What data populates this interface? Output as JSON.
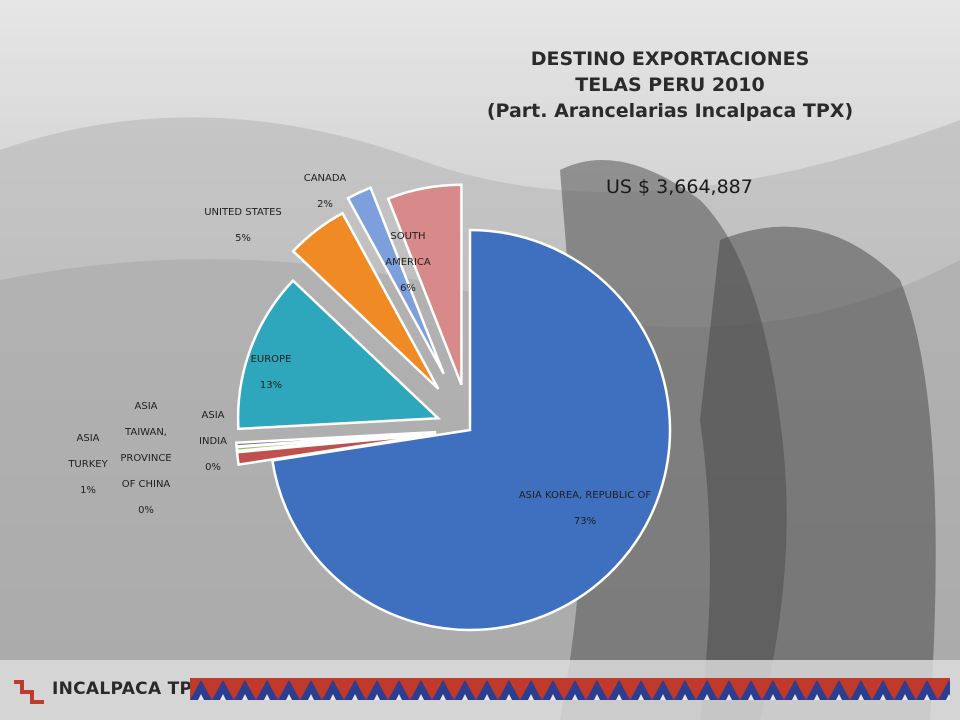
{
  "chart_data": {
    "type": "pie",
    "title": "DESTINO EXPORTACIONES",
    "subtitle": "TELAS PERU 2010",
    "subtitle2": "(Part. Arancelarias Incalpaca TPX)",
    "total_label": "US $ 3,664,887",
    "slices": [
      {
        "name": "ASIA KOREA, REPUBLIC OF",
        "value": 73,
        "label": "73%",
        "color": "#3f6fbf"
      },
      {
        "name": "ASIA TURKEY",
        "value": 1,
        "label": "1%",
        "color": "#c0504d"
      },
      {
        "name": "ASIA TAIWAN, PROVINCE OF CHINA",
        "value": 0.3,
        "label": "0%",
        "color": "#9bbb59"
      },
      {
        "name": "ASIA INDIA",
        "value": 0.3,
        "label": "0%",
        "color": "#8064a2"
      },
      {
        "name": "EUROPE",
        "value": 13,
        "label": "13%",
        "color": "#2ea6bb"
      },
      {
        "name": "UNITED STATES",
        "value": 5,
        "label": "5%",
        "color": "#f08a24"
      },
      {
        "name": "CANADA",
        "value": 2,
        "label": "2%",
        "color": "#7d9fdc"
      },
      {
        "name": "SOUTH AMERICA",
        "value": 6,
        "label": "6%",
        "color": "#d88a8a"
      }
    ]
  },
  "labels": {
    "korea": {
      "name": "ASIA KOREA, REPUBLIC OF",
      "pct": "73%"
    },
    "turkey": {
      "l1": "ASIA",
      "l2": "TURKEY",
      "pct": "1%"
    },
    "taiwan": {
      "l1": "ASIA",
      "l2": "TAIWAN,",
      "l3": "PROVINCE",
      "l4": "OF CHINA",
      "pct": "0%"
    },
    "india": {
      "l1": "ASIA",
      "l2": "INDIA",
      "pct": "0%"
    },
    "europe": {
      "name": "EUROPE",
      "pct": "13%"
    },
    "usa": {
      "name": "UNITED  STATES",
      "pct": "5%"
    },
    "canada": {
      "name": "CANADA",
      "pct": "2%"
    },
    "south_america": {
      "l1": "SOUTH",
      "l2": "AMERICA",
      "pct": "6%"
    }
  },
  "footer": {
    "logo_text": "INCALPACA TPX",
    "band_colors": [
      "#c0392b",
      "#2c3e8f",
      "#e6e6e6"
    ]
  }
}
